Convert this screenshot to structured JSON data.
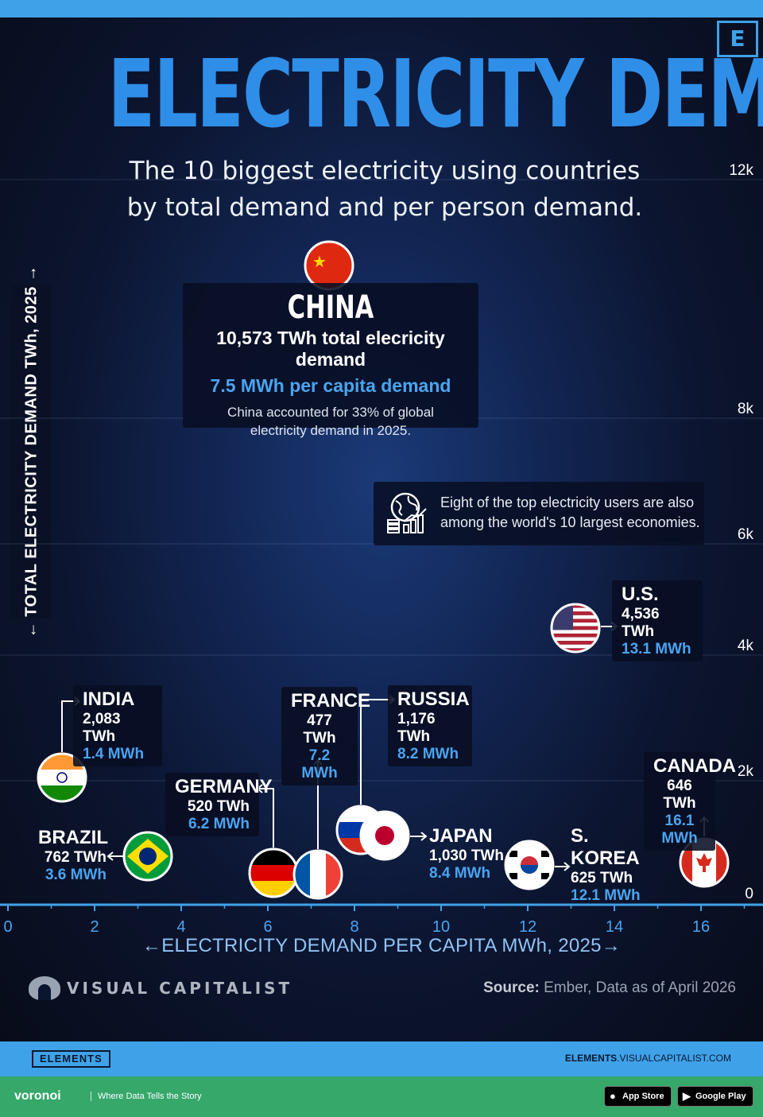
{
  "title": "ELECTRICITY DEMAND",
  "subtitle": [
    "The 10 biggest electricity using countries",
    "by total demand and per person demand."
  ],
  "brand_logo_letter": "E",
  "colors": {
    "accent": "#3fa2e8",
    "title": "#2f8ee8",
    "per_capita": "#4aa4f0",
    "footer_green": "#35a86a"
  },
  "china_callout": {
    "name": "CHINA",
    "total": "10,573 TWh total elecricity demand",
    "per_capita": "7.5 MWh per capita demand",
    "note": [
      "China accounted for 33% of global",
      "electricity demand in 2025."
    ]
  },
  "eight_callout": {
    "icon": "globe-chart-icon",
    "lines": [
      "Eight of the top electricity users are also",
      "among the world's 10 largest economies."
    ]
  },
  "chart_data": {
    "type": "scatter",
    "xlabel": "←ELECTRICITY DEMAND PER CAPITA MWh, 2025→",
    "ylabel": "← TOTAL ELECTRICITY DEMAND TWh, 2025 →",
    "x_ticks": [
      "0",
      "2",
      "4",
      "6",
      "8",
      "10",
      "12",
      "14",
      "16"
    ],
    "x_tick_values": [
      0,
      2,
      4,
      6,
      8,
      10,
      12,
      14,
      16
    ],
    "y_ticks": [
      "0",
      "2k",
      "4k",
      "6k",
      "8k",
      "12k"
    ],
    "xlim": [
      0,
      17.5
    ],
    "points": [
      {
        "name": "INDIA",
        "total": "2,083 TWh",
        "per_capita": "1.4 MWh",
        "x": 1.4,
        "y": 2083,
        "flag": "india-flag"
      },
      {
        "name": "BRAZIL",
        "total": "762 TWh",
        "per_capita": "3.6 MWh",
        "x": 3.6,
        "y": 762,
        "flag": "brazil-flag"
      },
      {
        "name": "GERMANY",
        "total": "520 TWh",
        "per_capita": "6.2 MWh",
        "x": 6.2,
        "y": 520,
        "flag": "germany-flag"
      },
      {
        "name": "FRANCE",
        "total": "477 TWh",
        "per_capita": "7.2 MWh",
        "x": 7.2,
        "y": 477,
        "flag": "france-flag"
      },
      {
        "name": "CHINA",
        "total": "10,573 TWh",
        "per_capita": "7.5 MWh",
        "x": 7.5,
        "y": 10573,
        "flag": "china-flag"
      },
      {
        "name": "RUSSIA",
        "total": "1,176 TWh",
        "per_capita": "8.2 MWh",
        "x": 8.2,
        "y": 1176,
        "flag": "russia-flag"
      },
      {
        "name": "JAPAN",
        "total": "1,030 TWh",
        "per_capita": "8.4 MWh",
        "x": 8.4,
        "y": 1030,
        "flag": "japan-flag"
      },
      {
        "name": "S. KOREA",
        "total": "625 TWh",
        "per_capita": "12.1 MWh",
        "x": 12.1,
        "y": 625,
        "flag": "south-korea-flag"
      },
      {
        "name": "U.S.",
        "total": "4,536 TWh",
        "per_capita": "13.1 MWh",
        "x": 13.1,
        "y": 4536,
        "flag": "us-flag"
      },
      {
        "name": "CANADA",
        "total": "646 TWh",
        "per_capita": "16.1 MWh",
        "x": 16.1,
        "y": 646,
        "flag": "canada-flag"
      }
    ]
  },
  "brand": "VISUAL CAPITALIST",
  "source_label": "Source:",
  "source_text": "Ember, Data as of April 2026",
  "footer": {
    "elements_badge": "ELEMENTS",
    "url_bold": "ELEMENTS",
    "url_rest": ".VISUALCAPITALIST.COM",
    "voronoi": "voronoi",
    "tagline": "Where Data Tells the Story",
    "app_store": "App Store",
    "google_play": "Google Play"
  }
}
